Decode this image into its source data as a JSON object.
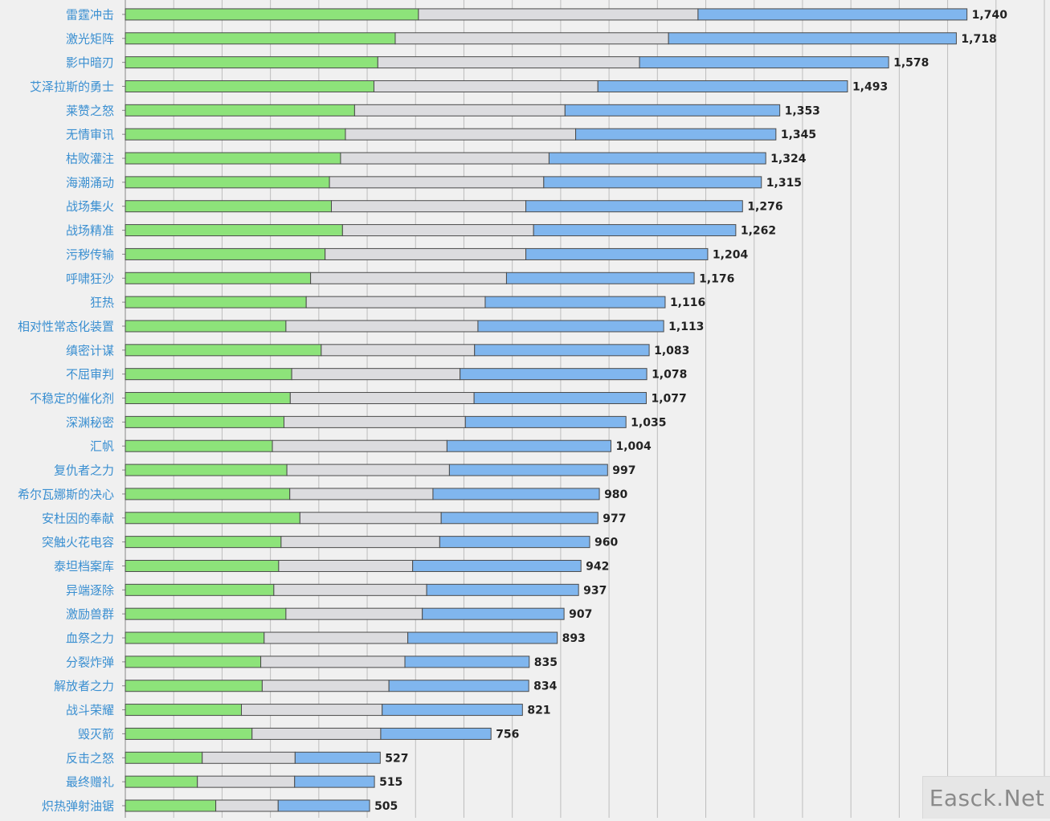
{
  "chart_data": {
    "type": "bar",
    "orientation": "horizontal",
    "stacked": true,
    "colors": {
      "green": "#8de37a",
      "gray": "#dcdcdf",
      "blue": "#80b6ee",
      "label": "#3a8fd1",
      "value": "#222222",
      "grid": "#bdbdbd",
      "background": "#f0f0f0"
    },
    "xlim": [
      0,
      1900
    ],
    "grid": true,
    "categories": [
      "雷霆冲击",
      "激光矩阵",
      "影中暗刃",
      "艾泽拉斯的勇士",
      "莱赞之怒",
      "无情审讯",
      "枯败灌注",
      "海潮涌动",
      "战场集火",
      "战场精准",
      "污秽传输",
      "呼啸狂沙",
      "狂热",
      "相对性常态化装置",
      "缜密计谋",
      "不屈审判",
      "不稳定的催化剂",
      "深渊秘密",
      "汇帆",
      "复仇者之力",
      "希尔瓦娜斯的决心",
      "安杜因的奉献",
      "突触火花电容",
      "泰坦档案库",
      "异端逐除",
      "激励兽群",
      "血祭之力",
      "分裂炸弹",
      "解放者之力",
      "战斗荣耀",
      "毁灭箭",
      "反击之怒",
      "最终赠礼",
      "炽热弹射油锯"
    ],
    "series": [
      {
        "color_key": "green",
        "values": [
          606,
          558,
          522,
          514,
          474,
          455,
          445,
          422,
          426,
          449,
          413,
          383,
          374,
          332,
          405,
          344,
          341,
          328,
          304,
          334,
          340,
          361,
          322,
          317,
          307,
          332,
          287,
          280,
          283,
          240,
          262,
          159,
          149,
          187
        ]
      },
      {
        "color_key": "gray",
        "values": [
          578,
          565,
          541,
          463,
          435,
          476,
          431,
          443,
          402,
          395,
          415,
          405,
          370,
          397,
          317,
          348,
          380,
          375,
          361,
          336,
          296,
          292,
          328,
          277,
          316,
          282,
          297,
          298,
          262,
          291,
          266,
          192,
          201,
          129
        ]
      },
      {
        "color_key": "blue",
        "values": [
          556,
          595,
          515,
          516,
          444,
          414,
          448,
          450,
          448,
          418,
          376,
          388,
          372,
          384,
          361,
          386,
          356,
          332,
          339,
          327,
          344,
          324,
          310,
          348,
          314,
          293,
          309,
          257,
          289,
          290,
          228,
          176,
          165,
          189
        ]
      }
    ],
    "totals": [
      "1,740",
      "1,718",
      "1,578",
      "1,493",
      "1,353",
      "1,345",
      "1,324",
      "1,315",
      "1,276",
      "1,262",
      "1,204",
      "1,176",
      "1,116",
      "1,113",
      "1,083",
      "1,078",
      "1,077",
      "1,035",
      "1,004",
      "997",
      "980",
      "977",
      "960",
      "942",
      "937",
      "907",
      "893",
      "835",
      "834",
      "821",
      "756",
      "527",
      "515",
      "505"
    ]
  },
  "watermark": {
    "text": "Easck.Net"
  }
}
